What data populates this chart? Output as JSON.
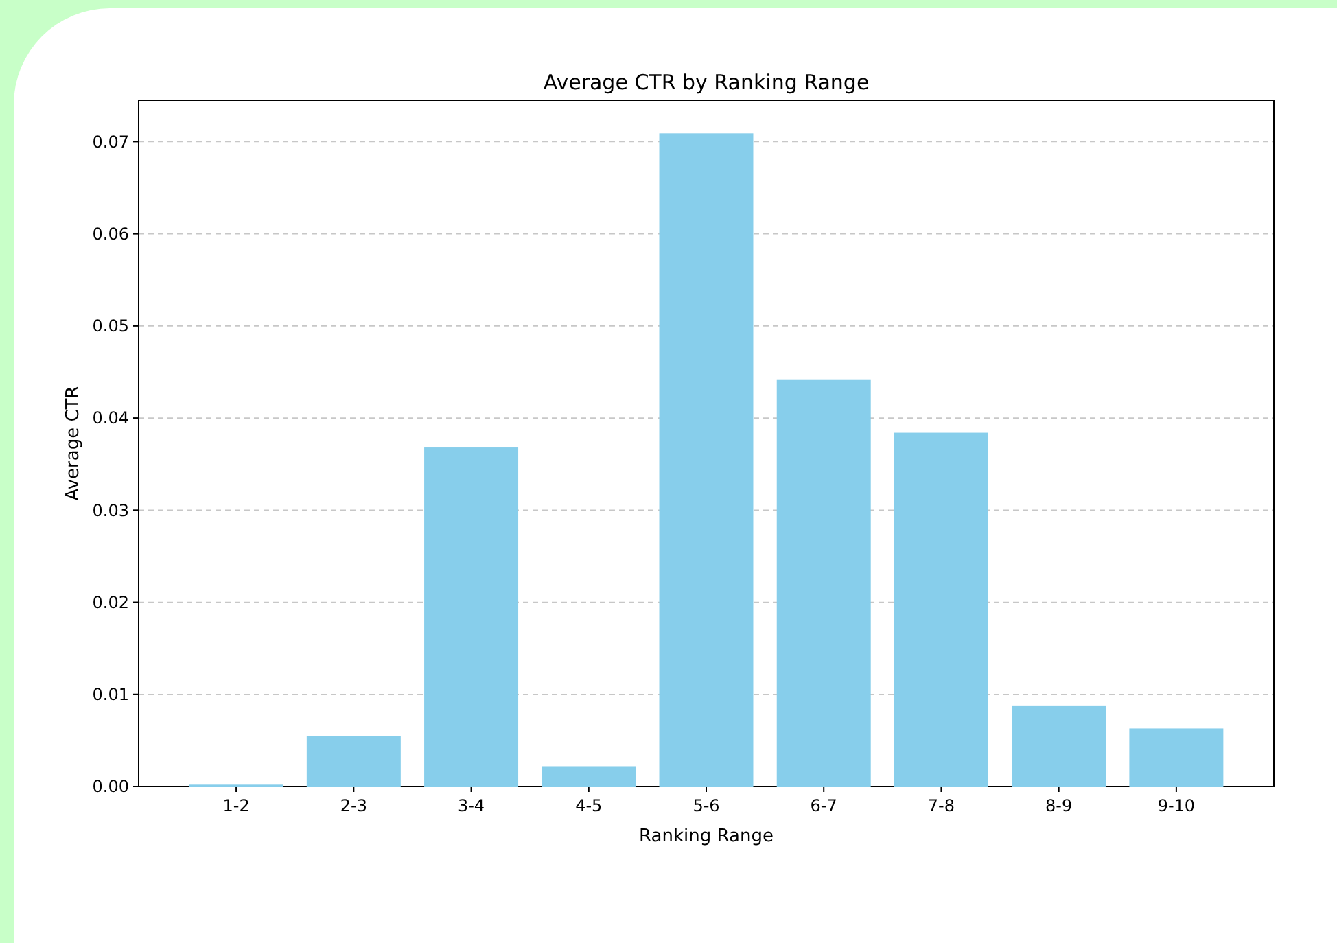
{
  "chart_data": {
    "type": "bar",
    "title": "Average CTR by Ranking Range",
    "xlabel": "Ranking Range",
    "ylabel": "Average CTR",
    "categories": [
      "1-2",
      "2-3",
      "3-4",
      "4-5",
      "5-6",
      "6-7",
      "7-8",
      "8-9",
      "9-10"
    ],
    "values": [
      0.0002,
      0.0055,
      0.0368,
      0.0022,
      0.0709,
      0.0442,
      0.0384,
      0.0088,
      0.0063
    ],
    "color": "#87ceeb",
    "ylim": [
      0,
      0.0745
    ],
    "yticks": [
      {
        "value": 0,
        "label": "0.00"
      },
      {
        "value": 0.01,
        "label": "0.01"
      },
      {
        "value": 0.02,
        "label": "0.02"
      },
      {
        "value": 0.03,
        "label": "0.03"
      },
      {
        "value": 0.04,
        "label": "0.04"
      },
      {
        "value": 0.05,
        "label": "0.05"
      },
      {
        "value": 0.06,
        "label": "0.06"
      },
      {
        "value": 0.07,
        "label": "0.07"
      }
    ],
    "grid": "y"
  }
}
